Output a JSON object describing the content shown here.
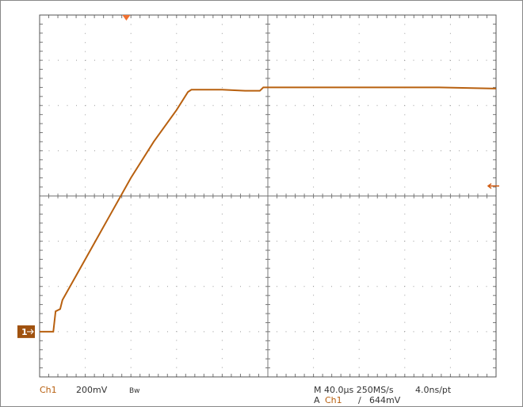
{
  "chart_data": {
    "type": "line",
    "channel_marker": "1",
    "x": [
      0,
      12,
      14,
      18,
      20,
      40,
      60,
      80,
      100,
      120,
      130,
      133,
      140,
      160,
      180,
      193,
      196,
      200,
      250,
      300,
      350,
      400
    ],
    "series": [
      {
        "name": "Ch1",
        "color": "#b8600f",
        "values": [
          0,
          0,
          0.09,
          0.1,
          0.14,
          0.32,
          0.5,
          0.68,
          0.84,
          0.98,
          1.06,
          1.07,
          1.07,
          1.07,
          1.065,
          1.065,
          1.08,
          1.08,
          1.08,
          1.08,
          1.08,
          1.075
        ]
      }
    ],
    "xlim": [
      0,
      400
    ],
    "xticks": [
      0,
      40,
      80,
      120,
      160,
      200,
      240,
      280,
      320,
      360,
      400
    ],
    "ylim": [
      -0.2,
      1.4
    ],
    "yticks": [
      -0.2,
      0,
      0.2,
      0.4,
      0.6,
      0.8,
      1.0,
      1.2,
      1.4
    ],
    "grid": true,
    "trigger_time": 76,
    "trigger_level": 0.644,
    "status": {
      "channel": "Ch1",
      "scale": "200mV",
      "bandwidth": "Bw",
      "timebase": "M 40.0µs 250MS/s",
      "resolution": "4.0ns/pt",
      "trigger_mode": "A",
      "trigger_source": "Ch1",
      "trigger_slope": "∕",
      "trigger_value": "644mV"
    }
  }
}
